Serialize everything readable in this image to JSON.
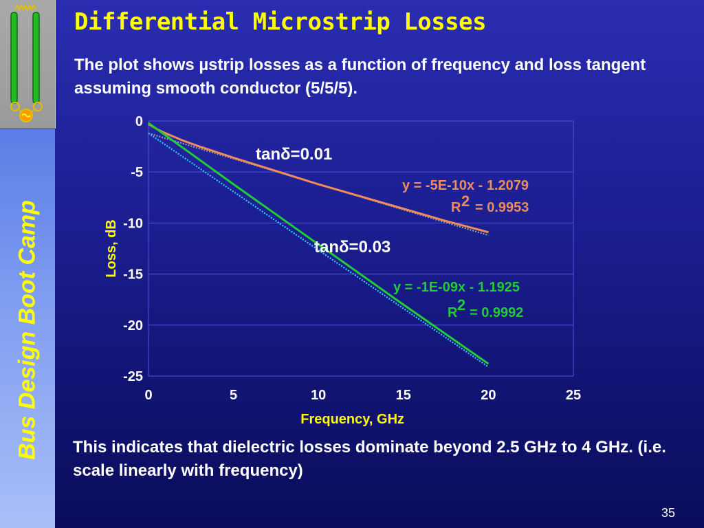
{
  "slide": {
    "title": "Differential Microstrip Losses",
    "subtitle": "The plot shows µstrip losses as a function of frequency and loss tangent assuming smooth conductor (5/5/5).",
    "sidebar_text": "Bus Design Boot Camp",
    "bottom_text": "This indicates that dielectric losses dominate beyond 2.5 GHz to 4 GHz. (i.e. scale linearly with frequency)",
    "page_number": "35"
  },
  "colors": {
    "title": "#ffff00",
    "series_001": "#f08c5a",
    "series_003": "#22cc33",
    "trend_001": "#a0a0a0",
    "trend_003": "#33ccff"
  },
  "chart_data": {
    "type": "line",
    "xlabel": "Frequency, GHz",
    "ylabel": "Loss, dB",
    "xlim": [
      0,
      25
    ],
    "ylim": [
      -25,
      0
    ],
    "x_ticks": [
      0,
      5,
      10,
      15,
      20,
      25
    ],
    "y_ticks": [
      0,
      -5,
      -10,
      -15,
      -20,
      -25
    ],
    "grid": "horizontal",
    "series": [
      {
        "name": "tanδ=0.01",
        "label": "tanδ=0.01",
        "color": "#f08c5a",
        "x": [
          0,
          0.5,
          1,
          2,
          3,
          5,
          7.5,
          10,
          12.5,
          15,
          17.5,
          20
        ],
        "y": [
          -0.3,
          -0.8,
          -1.2,
          -1.9,
          -2.5,
          -3.6,
          -4.9,
          -6.2,
          -7.4,
          -8.6,
          -9.8,
          -10.9
        ],
        "trendline": {
          "equation": "y = -5E-10x - 1.2079",
          "r2_label": "R",
          "r2_sup": "2",
          "r2_value": "= 0.9953",
          "color": "#a0a0a0",
          "endpoints": [
            [
              0,
              -1.2
            ],
            [
              20,
              -11.2
            ]
          ]
        }
      },
      {
        "name": "tanδ=0.03",
        "label": "tanδ=0.03",
        "color": "#22cc33",
        "x": [
          0,
          1,
          2,
          5,
          10,
          15,
          20
        ],
        "y": [
          -0.2,
          -1.4,
          -2.6,
          -6.2,
          -12.1,
          -18.0,
          -23.8
        ],
        "trendline": {
          "equation": "y = -1E-09x - 1.1925",
          "r2_label": "R",
          "r2_sup": "2",
          "r2_value": "= 0.9992",
          "color": "#33ccff",
          "endpoints": [
            [
              0,
              -1.2
            ],
            [
              20,
              -24.1
            ]
          ]
        }
      }
    ]
  }
}
